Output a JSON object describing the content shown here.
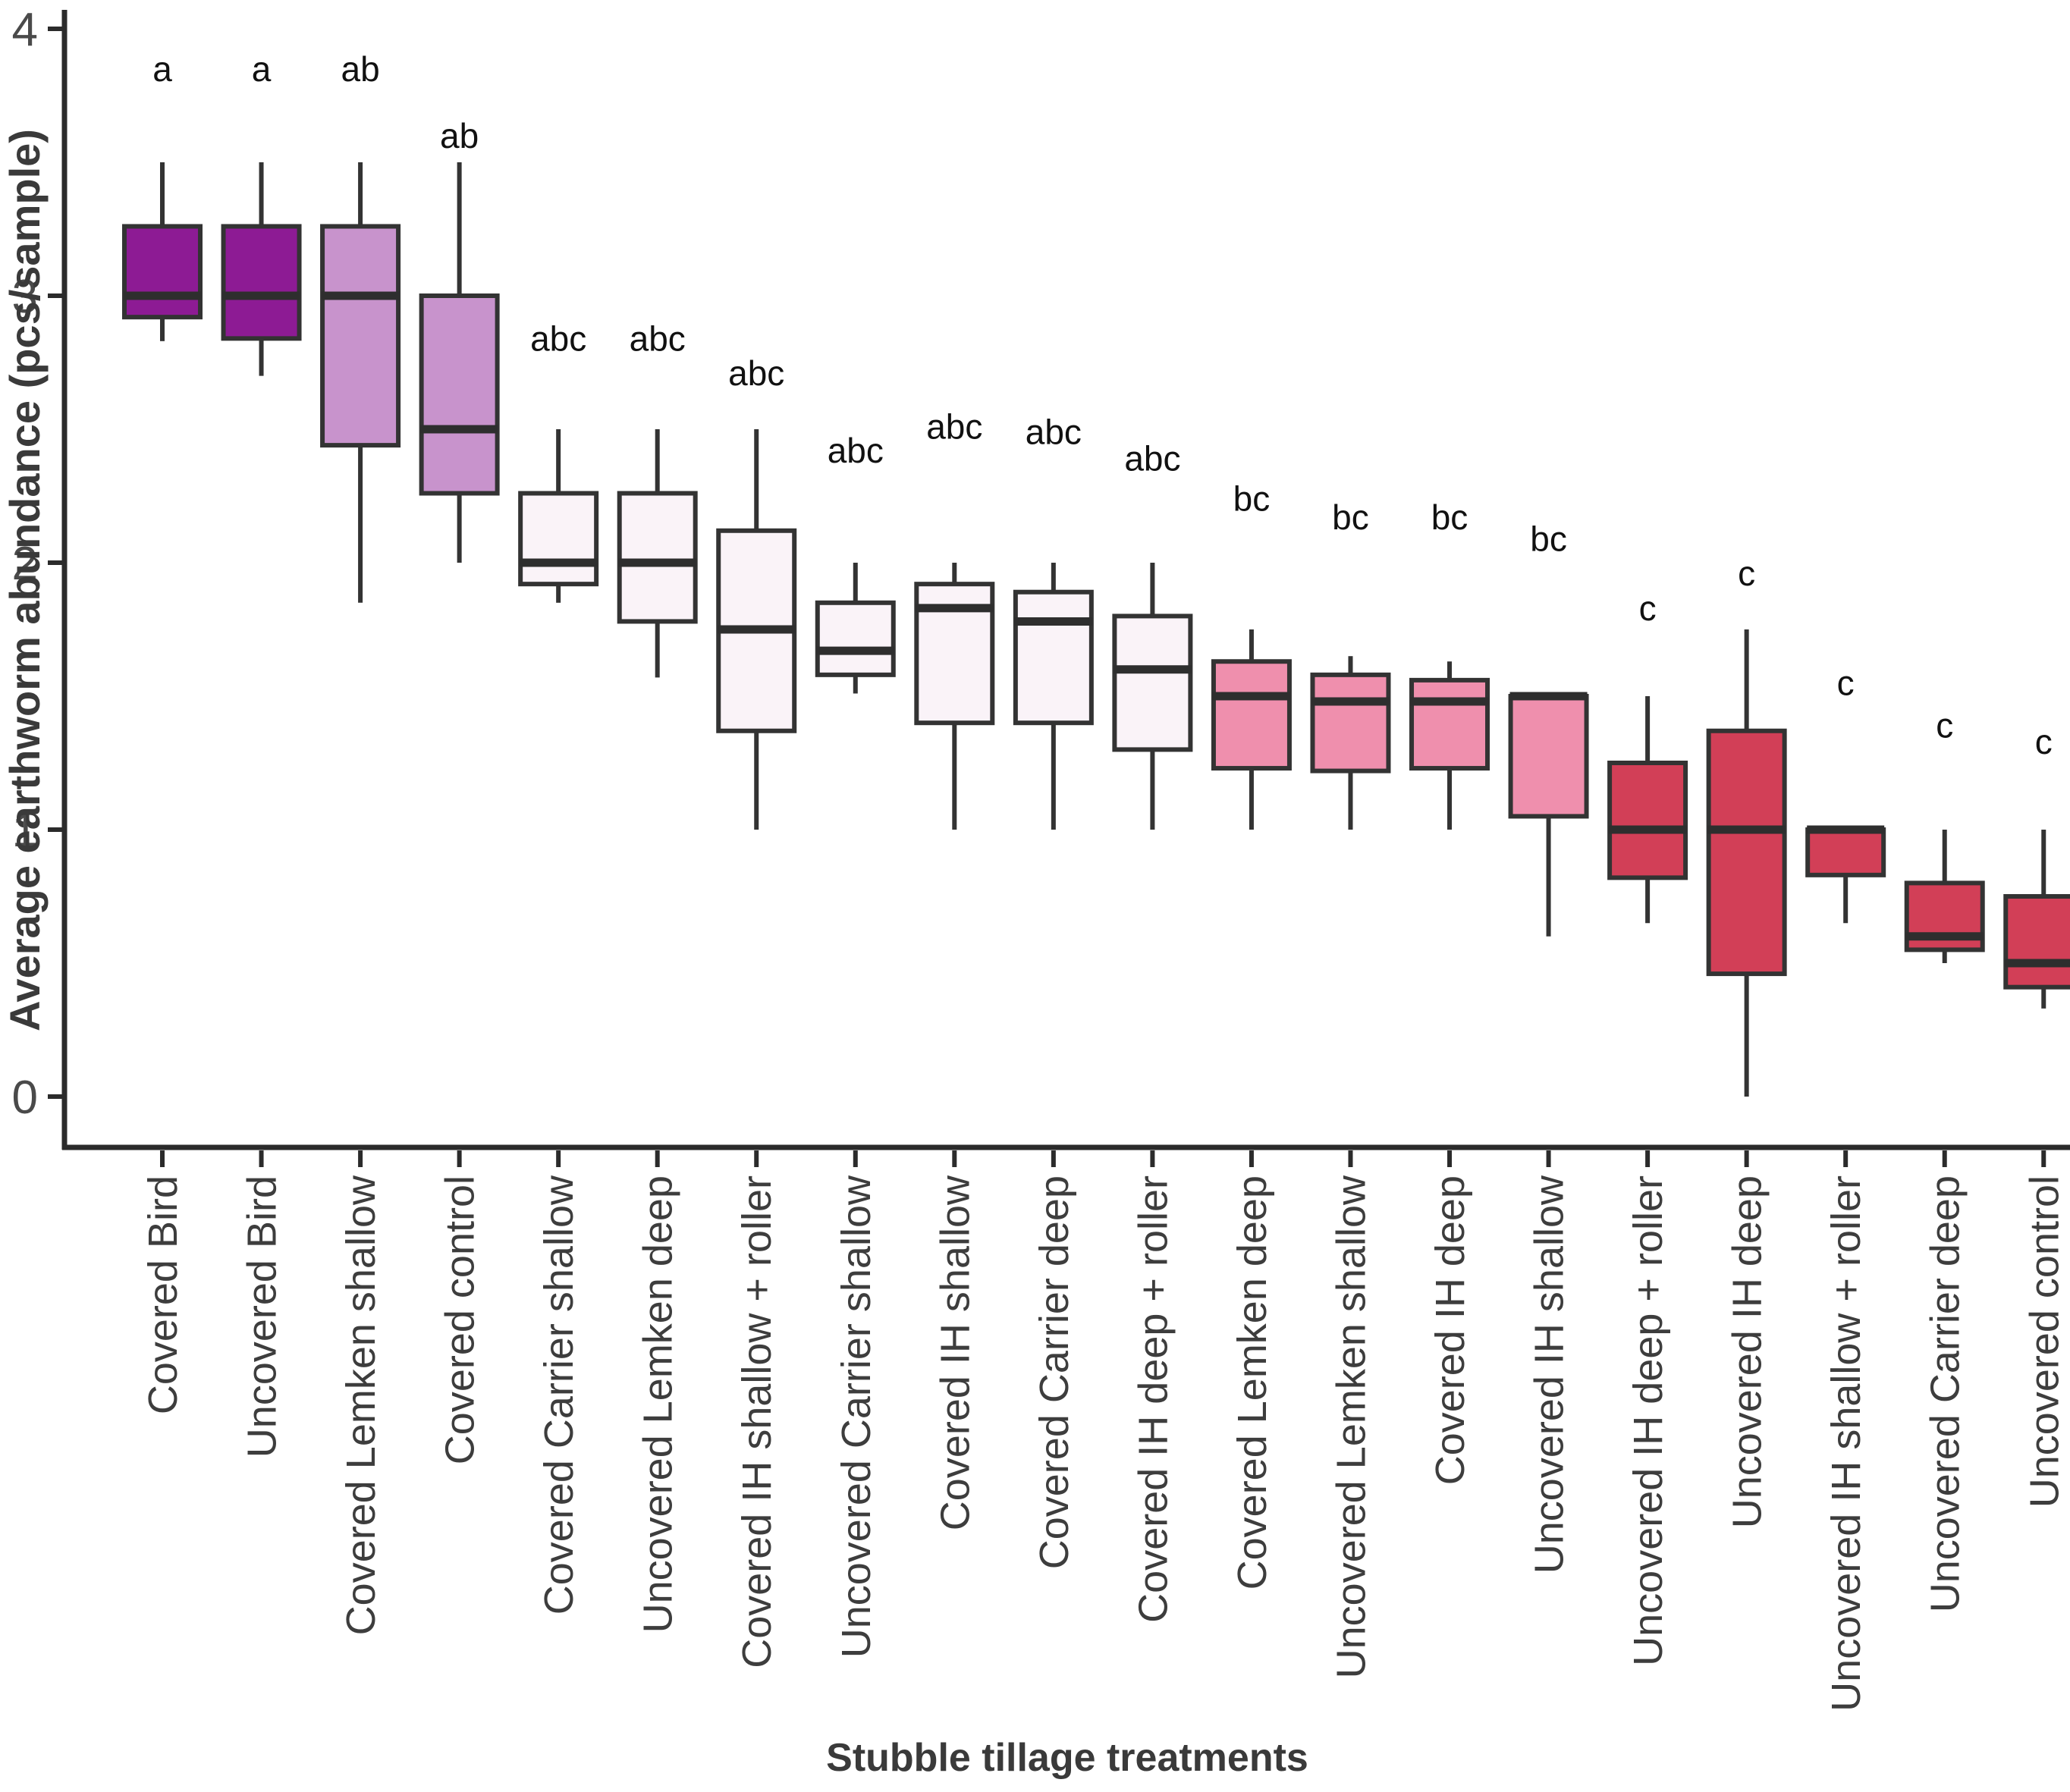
{
  "figure": {
    "x_title": "Stubble tillage treatments",
    "y_title": "Average earthworm abundance (pcs/sample)"
  },
  "chart_data": {
    "type": "boxplot",
    "title": "",
    "xlabel": "Stubble tillage treatments",
    "ylabel": "Average earthworm abundance (pcs/sample)",
    "ylim": [
      0,
      4
    ],
    "yticks": [
      "0",
      "1",
      "2",
      "3",
      "4"
    ],
    "grid": "off",
    "legend": "none",
    "colors": {
      "dark_purple": "#8D1B94",
      "plum": "#C893CC",
      "pale_lavender": "#FAF3F8",
      "pink": "#EF8FAD",
      "red": "#D23F57",
      "stroke": "#333333",
      "tick_text": "#4a4a4a",
      "label_text": "#3d3d3d",
      "letter_text": "#111111"
    },
    "categories": [
      "Covered Bird",
      "Uncovered Bird",
      "Covered Lemken shallow",
      "Covered control",
      "Covered Carrier shallow",
      "Uncovered Lemken deep",
      "Covered IH shallow + roller",
      "Uncovered Carrier shallow",
      "Covered IH shallow",
      "Covered Carrier deep",
      "Covered IH deep + roller",
      "Covered Lemken deep",
      "Uncovered Lemken shallow",
      "Covered IH deep",
      "Uncovered IH shallow",
      "Uncovered IH deep + roller",
      "Uncovered IH deep",
      "Uncovered IH shallow + roller",
      "Uncovered Carrier deep",
      "Uncovered control"
    ],
    "boxes": [
      {
        "label": "Covered Bird",
        "letter": "a",
        "letter_y": 3.85,
        "lo": 2.83,
        "q1": 2.92,
        "median": 3.0,
        "q3": 3.26,
        "hi": 3.5,
        "color": "#8D1B94"
      },
      {
        "label": "Uncovered Bird",
        "letter": "a",
        "letter_y": 3.85,
        "lo": 2.7,
        "q1": 2.84,
        "median": 3.0,
        "q3": 3.26,
        "hi": 3.5,
        "color": "#8D1B94"
      },
      {
        "label": "Covered Lemken shallow",
        "letter": "ab",
        "letter_y": 3.85,
        "lo": 1.85,
        "q1": 2.44,
        "median": 3.0,
        "q3": 3.26,
        "hi": 3.5,
        "color": "#C893CC"
      },
      {
        "label": "Covered control",
        "letter": "ab",
        "letter_y": 3.6,
        "lo": 2.0,
        "q1": 2.26,
        "median": 2.5,
        "q3": 3.0,
        "hi": 3.5,
        "color": "#C893CC"
      },
      {
        "label": "Covered Carrier shallow",
        "letter": "abc",
        "letter_y": 2.84,
        "lo": 1.85,
        "q1": 1.92,
        "median": 2.0,
        "q3": 2.26,
        "hi": 2.5,
        "color": "#FAF3F8"
      },
      {
        "label": "Uncovered Lemken deep",
        "letter": "abc",
        "letter_y": 2.84,
        "lo": 1.57,
        "q1": 1.78,
        "median": 2.0,
        "q3": 2.26,
        "hi": 2.5,
        "color": "#FAF3F8"
      },
      {
        "label": "Covered IH shallow + roller",
        "letter": "abc",
        "letter_y": 2.71,
        "lo": 1.0,
        "q1": 1.37,
        "median": 1.75,
        "q3": 2.12,
        "hi": 2.5,
        "color": "#FAF3F8"
      },
      {
        "label": "Uncovered Carrier shallow",
        "letter": "abc",
        "letter_y": 2.42,
        "lo": 1.51,
        "q1": 1.58,
        "median": 1.67,
        "q3": 1.85,
        "hi": 2.0,
        "color": "#FAF3F8"
      },
      {
        "label": "Covered IH shallow",
        "letter": "abc",
        "letter_y": 2.51,
        "lo": 1.0,
        "q1": 1.4,
        "median": 1.83,
        "q3": 1.92,
        "hi": 2.0,
        "color": "#FAF3F8"
      },
      {
        "label": "Covered Carrier deep",
        "letter": "abc",
        "letter_y": 2.49,
        "lo": 1.0,
        "q1": 1.4,
        "median": 1.78,
        "q3": 1.89,
        "hi": 2.0,
        "color": "#FAF3F8"
      },
      {
        "label": "Covered IH deep + roller",
        "letter": "abc",
        "letter_y": 2.39,
        "lo": 1.0,
        "q1": 1.3,
        "median": 1.6,
        "q3": 1.8,
        "hi": 2.0,
        "color": "#FAF3F8"
      },
      {
        "label": "Covered Lemken deep",
        "letter": "bc",
        "letter_y": 2.24,
        "lo": 1.0,
        "q1": 1.23,
        "median": 1.5,
        "q3": 1.63,
        "hi": 1.75,
        "color": "#EF8FAD"
      },
      {
        "label": "Uncovered Lemken shallow",
        "letter": "bc",
        "letter_y": 2.17,
        "lo": 1.0,
        "q1": 1.22,
        "median": 1.48,
        "q3": 1.58,
        "hi": 1.65,
        "color": "#EF8FAD"
      },
      {
        "label": "Covered IH deep",
        "letter": "bc",
        "letter_y": 2.17,
        "lo": 1.0,
        "q1": 1.23,
        "median": 1.48,
        "q3": 1.56,
        "hi": 1.63,
        "color": "#EF8FAD"
      },
      {
        "label": "Uncovered IH shallow",
        "letter": "bc",
        "letter_y": 2.09,
        "lo": 0.6,
        "q1": 1.05,
        "median": 1.5,
        "q3": 1.5,
        "hi": 1.5,
        "color": "#EF8FAD"
      },
      {
        "label": "Uncovered IH deep + roller",
        "letter": "c",
        "letter_y": 1.83,
        "lo": 0.65,
        "q1": 0.82,
        "median": 1.0,
        "q3": 1.25,
        "hi": 1.5,
        "color": "#D23F57"
      },
      {
        "label": "Uncovered IH deep",
        "letter": "c",
        "letter_y": 1.96,
        "lo": 0.0,
        "q1": 0.46,
        "median": 1.0,
        "q3": 1.37,
        "hi": 1.75,
        "color": "#D23F57"
      },
      {
        "label": "Uncovered IH shallow + roller",
        "letter": "c",
        "letter_y": 1.55,
        "lo": 0.65,
        "q1": 0.83,
        "median": 1.0,
        "q3": 1.0,
        "hi": 1.0,
        "color": "#D23F57"
      },
      {
        "label": "Uncovered Carrier deep",
        "letter": "c",
        "letter_y": 1.39,
        "lo": 0.5,
        "q1": 0.55,
        "median": 0.6,
        "q3": 0.8,
        "hi": 1.0,
        "color": "#D23F57"
      },
      {
        "label": "Uncovered control",
        "letter": "c",
        "letter_y": 1.33,
        "lo": 0.33,
        "q1": 0.41,
        "median": 0.5,
        "q3": 0.75,
        "hi": 1.0,
        "color": "#D23F57"
      }
    ]
  }
}
